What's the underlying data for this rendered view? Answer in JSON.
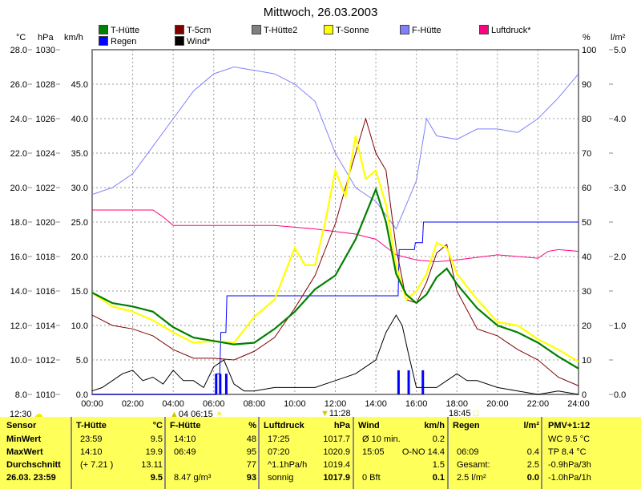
{
  "chart_data": {
    "type": "line",
    "title": "Mittwoch, 26.03.2003",
    "axes": {
      "left_units": [
        "°C",
        "hPa",
        "km/h"
      ],
      "right_units": [
        "%",
        "l/m²"
      ],
      "temp_ticks": [
        "28.0",
        "26.0",
        "24.0",
        "22.0",
        "20.0",
        "18.0",
        "16.0",
        "14.0",
        "12.0",
        "10.0",
        "8.0"
      ],
      "hpa_ticks": [
        "1030",
        "1028",
        "1026",
        "1024",
        "1022",
        "1020",
        "1018",
        "1016",
        "1014",
        "1012",
        "1010"
      ],
      "kmh_ticks": [
        "45.0",
        "40.0",
        "35.0",
        "30.0",
        "25.0",
        "20.0",
        "15.0",
        "10.0",
        "5.0",
        "0.0"
      ],
      "pct_ticks": [
        "100",
        "90",
        "80",
        "70",
        "60",
        "50",
        "40",
        "30",
        "20",
        "10",
        "0"
      ],
      "rain_ticks": [
        "5.0",
        "4.0",
        "3.0",
        "2.0",
        "1.0",
        "0.0"
      ],
      "x_ticks": [
        "00:00",
        "02:00",
        "04:00",
        "06:00",
        "08:00",
        "10:00",
        "12:00",
        "14:00",
        "16:00",
        "18:00",
        "20:00",
        "22:00",
        "24:00"
      ],
      "temp_range": [
        8,
        28
      ],
      "hpa_range": [
        1010,
        1030
      ],
      "kmh_range": [
        0,
        50
      ],
      "pct_range": [
        0,
        100
      ],
      "rain_range": [
        0,
        5
      ],
      "x_range": [
        0,
        24
      ],
      "grid": true
    },
    "legend": [
      {
        "name": "T-Hütte",
        "color": "#008000"
      },
      {
        "name": "T-5cm",
        "color": "#800000"
      },
      {
        "name": "T-Hütte2",
        "color": "#808080"
      },
      {
        "name": "T-Sonne",
        "color": "#ffff00"
      },
      {
        "name": "F-Hütte",
        "color": "#8080ff"
      },
      {
        "name": "Luftdruck*",
        "color": "#ff0080"
      },
      {
        "name": "Regen",
        "color": "#0000ff"
      },
      {
        "name": "Wind*",
        "color": "#000000"
      }
    ],
    "series": [
      {
        "name": "F-Hütte",
        "axis": "pct",
        "color": "#8080ff",
        "x": [
          0,
          1,
          2,
          3,
          4,
          5,
          6,
          7,
          8,
          9,
          10,
          11,
          12,
          13,
          14,
          15,
          15.5,
          16,
          16.5,
          17,
          18,
          19,
          20,
          21,
          22,
          23,
          24
        ],
        "y": [
          58,
          60,
          64,
          72,
          80,
          88,
          93,
          95,
          94,
          93,
          90,
          85,
          70,
          60,
          56,
          48,
          55,
          62,
          80,
          75,
          74,
          77,
          77,
          76,
          80,
          86,
          93
        ]
      },
      {
        "name": "Luftdruck*",
        "axis": "hpa",
        "color": "#ff0080",
        "x": [
          0,
          3,
          3.5,
          4,
          6,
          9,
          11,
          13,
          14,
          15,
          16,
          17,
          18,
          20,
          22,
          22.5,
          23,
          24
        ],
        "y": [
          1020.7,
          1020.7,
          1020.3,
          1019.8,
          1019.8,
          1019.8,
          1019.6,
          1019.3,
          1019.0,
          1018.1,
          1017.8,
          1017.7,
          1017.8,
          1018.1,
          1017.9,
          1018.3,
          1018.4,
          1018.3
        ]
      },
      {
        "name": "Regen",
        "axis": "rain",
        "color": "#0000ff",
        "x": [
          0,
          6.1,
          6.15,
          6.3,
          6.35,
          6.6,
          6.65,
          15.1,
          15.15,
          15.9,
          15.95,
          16.3,
          16.35,
          24
        ],
        "y": [
          0,
          0,
          0.3,
          0.3,
          0.9,
          0.9,
          1.43,
          1.43,
          2.1,
          2.1,
          2.2,
          2.2,
          2.5,
          2.5
        ]
      },
      {
        "name": "Wind*",
        "axis": "kmh",
        "color": "#000000",
        "x": [
          0,
          0.5,
          1,
          1.5,
          2,
          2.5,
          3,
          3.5,
          4,
          4.5,
          5,
          5.5,
          6,
          6.5,
          7,
          7.5,
          8,
          9,
          10,
          11,
          12,
          13,
          13.5,
          14,
          14.5,
          15,
          15.3,
          15.6,
          16,
          17,
          17.5,
          18,
          18.5,
          19,
          20,
          21,
          22,
          23,
          24
        ],
        "y": [
          0.5,
          1,
          2,
          3,
          3.5,
          2,
          2.5,
          1.5,
          3.5,
          2,
          2,
          1,
          4,
          5,
          1.5,
          0.5,
          0.5,
          1,
          1,
          1,
          2,
          3,
          4,
          5,
          9,
          11.5,
          10,
          6,
          1,
          1,
          2,
          3,
          2,
          2,
          1,
          0.5,
          0,
          0.5,
          0
        ]
      },
      {
        "name": "T-5cm",
        "axis": "temp",
        "color": "#800000",
        "x": [
          0,
          1,
          2,
          3,
          4,
          5,
          6,
          7,
          8,
          9,
          10,
          11,
          12,
          12.5,
          13,
          13.5,
          14,
          14.5,
          15,
          15.5,
          16,
          16.5,
          17,
          17.5,
          18,
          19,
          20,
          21,
          22,
          23,
          24
        ],
        "y": [
          12.6,
          12,
          11.8,
          11.4,
          10.6,
          10.1,
          10.1,
          10,
          10.5,
          11.3,
          13,
          14.9,
          17.9,
          20,
          22,
          24,
          22,
          21,
          16.5,
          13.5,
          13.3,
          14.5,
          16.2,
          16.7,
          14,
          11.8,
          11.4,
          10.6,
          10,
          9,
          8.5
        ]
      },
      {
        "name": "T-Sonne",
        "axis": "temp",
        "color": "#ffff00",
        "x": [
          0,
          1,
          2,
          3,
          4,
          5,
          6,
          7,
          8,
          9,
          9.5,
          10,
          10.5,
          11,
          11.5,
          12,
          12.5,
          13,
          13.5,
          14,
          14.5,
          15,
          15.5,
          16,
          16.5,
          17,
          17.5,
          18,
          19,
          20,
          21,
          22,
          23,
          24
        ],
        "y": [
          13.9,
          13.1,
          12.8,
          12.3,
          11.6,
          11,
          11.1,
          11,
          12.5,
          13.5,
          15,
          16.5,
          15.5,
          15.5,
          18,
          21,
          19.5,
          23,
          20.5,
          21,
          19,
          15.5,
          13.5,
          14,
          15,
          16.8,
          16.5,
          15,
          13.5,
          12.2,
          12,
          11.2,
          10.6,
          9.9
        ]
      },
      {
        "name": "T-Hütte",
        "axis": "temp",
        "color": "#008000",
        "x": [
          0,
          1,
          2,
          3,
          4,
          5,
          6,
          7,
          8,
          9,
          10,
          11,
          12,
          13,
          14,
          14.5,
          15,
          15.5,
          16,
          16.5,
          17,
          17.5,
          18,
          19,
          20,
          21,
          22,
          23,
          24
        ],
        "y": [
          13.9,
          13.3,
          13.1,
          12.8,
          11.9,
          11.3,
          11.1,
          10.9,
          11,
          11.8,
          12.8,
          14.1,
          14.9,
          17,
          19.9,
          18,
          15,
          13.8,
          13.3,
          13.8,
          14.8,
          15.3,
          14.4,
          13,
          12,
          11.6,
          11,
          10.2,
          9.5
        ]
      }
    ],
    "rain_bars": {
      "x": [
        6.1,
        6.3,
        6.6,
        15.1,
        15.6,
        16.3
      ],
      "y": [
        0.3,
        0.3,
        0.3,
        0.35,
        0.35,
        0.35
      ]
    }
  },
  "markers": {
    "left": "12:30",
    "sunrise": "04 06:15",
    "moon": "11:28",
    "sunset": "18:45"
  },
  "table": {
    "sensor": {
      "h": "Sensor",
      "r": [
        "MinWert",
        "MaxWert",
        "Durchschnitt",
        "26.03. 23:59"
      ]
    },
    "thuette": {
      "h": "T-Hütte",
      "u": "°C",
      "l": [
        "23:59",
        "14:10",
        "(+ 7.21 )",
        ""
      ],
      "v": [
        "9.5",
        "19.9",
        "13.11",
        "9.5"
      ]
    },
    "fhuette": {
      "h": "F-Hütte",
      "u": "%",
      "l": [
        "14:10",
        "06:49",
        "",
        "8.47 g/m³"
      ],
      "v": [
        "48",
        "95",
        "77",
        "93"
      ]
    },
    "luft": {
      "h": "Luftdruck",
      "u": "hPa",
      "l": [
        "17:25",
        "07:20",
        "^1.1hPa/h",
        "sonnig"
      ],
      "v": [
        "1017.7",
        "1020.9",
        "1019.4",
        "1017.9"
      ]
    },
    "wind": {
      "h": "Wind",
      "u": "km/h",
      "l": [
        "Ø 10 min.",
        "15:05",
        "",
        "0 Bft"
      ],
      "v": [
        "0.2",
        "O-NO 14.4",
        "1.5",
        "0.1"
      ]
    },
    "regen": {
      "h": "Regen",
      "u": "l/m²",
      "l": [
        "",
        "06:09",
        "Gesamt:",
        "2.5 l/m²"
      ],
      "v": [
        "",
        "0.4",
        "2.5",
        "0.0"
      ]
    },
    "pmv": {
      "h": "PMV+1:12",
      "r": [
        "WC 9.5 °C",
        "TP 8.4 °C",
        "-0.9hPa/3h",
        "-1.0hPa/1h"
      ]
    }
  }
}
